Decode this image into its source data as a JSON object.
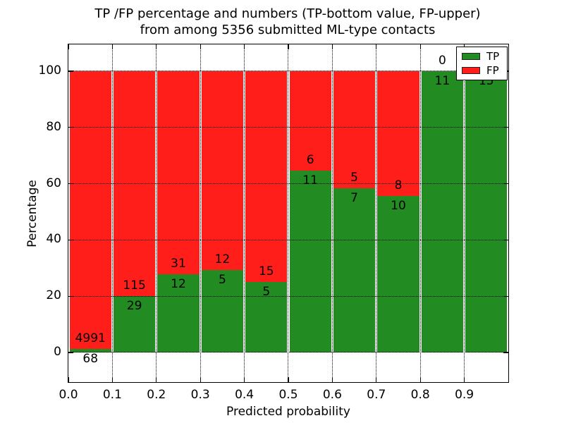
{
  "figure": {
    "title_line1": "TP /FP percentage and numbers (TP-bottom value, FP-upper)",
    "title_line2": "from among 5356 submitted ML-type contacts"
  },
  "axes": {
    "xlabel": "Predicted probability",
    "ylabel": "Percentage",
    "xtick_labels": [
      "0.0",
      "0.1",
      "0.2",
      "0.3",
      "0.4",
      "0.5",
      "0.6",
      "0.7",
      "0.8",
      "0.9"
    ],
    "xtick_values": [
      0.0,
      0.1,
      0.2,
      0.3,
      0.4,
      0.5,
      0.6,
      0.7,
      0.8,
      0.9
    ],
    "ytick_labels": [
      "0",
      "20",
      "40",
      "60",
      "80",
      "100"
    ],
    "ytick_values": [
      0,
      20,
      40,
      60,
      80,
      100
    ],
    "xlim": [
      0.0,
      1.0
    ],
    "ylim": [
      -10.5,
      109.5
    ]
  },
  "legend": {
    "items": [
      {
        "label": "TP",
        "color": "#228B22"
      },
      {
        "label": "FP",
        "color": "#FF1E1A"
      }
    ]
  },
  "chart_data": {
    "type": "bar",
    "stacked": true,
    "title": "TP /FP percentage and numbers (TP-bottom value, FP-upper) from among 5356 submitted ML-type contacts",
    "xlabel": "Predicted probability",
    "ylabel": "Percentage",
    "total_submitted": 5356,
    "bins": [
      "0.0-0.1",
      "0.1-0.2",
      "0.2-0.3",
      "0.3-0.4",
      "0.4-0.5",
      "0.5-0.6",
      "0.6-0.7",
      "0.7-0.8",
      "0.8-0.9",
      "0.9-1.0"
    ],
    "x_edges": [
      0.0,
      0.1,
      0.2,
      0.3,
      0.4,
      0.5,
      0.6,
      0.7,
      0.8,
      0.9,
      1.0
    ],
    "series": [
      {
        "name": "TP",
        "color": "#228B22",
        "counts": [
          68,
          29,
          12,
          5,
          5,
          11,
          7,
          10,
          11,
          15
        ]
      },
      {
        "name": "FP",
        "color": "#FF1E1A",
        "counts": [
          4991,
          115,
          31,
          12,
          15,
          6,
          5,
          8,
          0,
          0
        ]
      }
    ],
    "tp_percentages": [
      1.34,
      20.14,
      27.91,
      29.41,
      25.0,
      64.71,
      58.33,
      55.56,
      100.0,
      100.0
    ],
    "bar_total_percent": 100,
    "ylim": [
      -10.5,
      109.5
    ],
    "xlim": [
      0.0,
      1.0
    ],
    "grid": "dotted",
    "legend_position": "upper right"
  }
}
